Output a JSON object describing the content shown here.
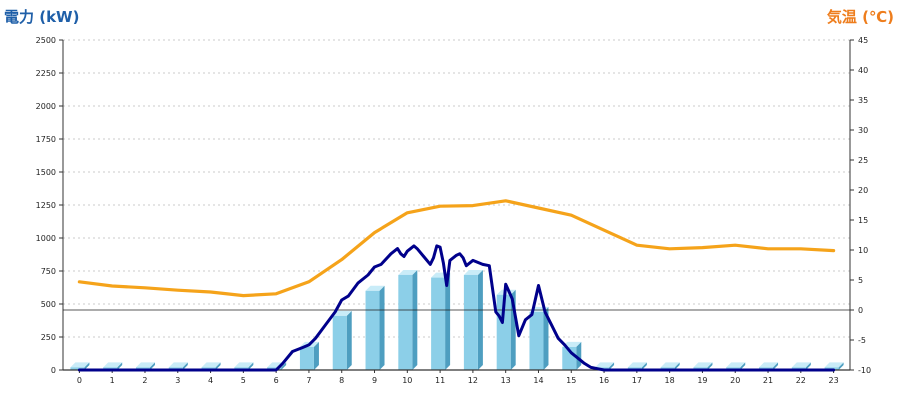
{
  "colors": {
    "left_title": "#1f5fa8",
    "right_title": "#ee7d1c",
    "bar_front": "#8ccfe8",
    "bar_side": "#4e9ec0",
    "bar_top": "#c9ecf8",
    "power_line": "#00008b",
    "temp_line": "#f5a31a",
    "grid": "#bbbbbb"
  },
  "chart_data": {
    "type": "bar",
    "title_left": "電力 (kW)",
    "title_right": "気温 (℃)",
    "left_axis": {
      "min": 0,
      "max": 2500,
      "ticks": [
        0,
        250,
        500,
        750,
        1000,
        1250,
        1500,
        1750,
        2000,
        2250,
        2500
      ]
    },
    "right_axis": {
      "min": -10,
      "max": 45,
      "ticks": [
        -10,
        -5,
        0,
        5,
        10,
        15,
        20,
        25,
        30,
        35,
        40,
        45
      ]
    },
    "categories": [
      "0",
      "1",
      "2",
      "3",
      "4",
      "5",
      "6",
      "7",
      "8",
      "9",
      "10",
      "11",
      "12",
      "13",
      "14",
      "15",
      "16",
      "17",
      "18",
      "19",
      "20",
      "21",
      "22",
      "23"
    ],
    "grid": "horizontal-dashed",
    "bars": {
      "axis": "left",
      "values": [
        20,
        20,
        20,
        20,
        20,
        20,
        20,
        175,
        410,
        600,
        720,
        700,
        720,
        570,
        440,
        175,
        20,
        20,
        20,
        20,
        20,
        20,
        20,
        20
      ]
    },
    "power_line": {
      "axis": "left",
      "x": [
        0,
        1,
        2,
        3,
        4,
        5,
        6,
        6.2,
        6.5,
        6.8,
        7,
        7.2,
        7.5,
        7.8,
        8,
        8.2,
        8.5,
        8.8,
        9,
        9.2,
        9.5,
        9.7,
        9.8,
        9.9,
        10,
        10.2,
        10.3,
        10.5,
        10.7,
        10.8,
        10.9,
        11,
        11.1,
        11.2,
        11.3,
        11.5,
        11.6,
        11.7,
        11.8,
        12,
        12.3,
        12.5,
        12.7,
        12.8,
        12.9,
        13,
        13.2,
        13.4,
        13.6,
        13.8,
        14,
        14.2,
        14.4,
        14.6,
        14.8,
        15,
        15.2,
        15.4,
        15.6,
        15.8,
        16,
        17,
        18,
        19,
        20,
        21,
        22,
        23
      ],
      "y": [
        0,
        0,
        0,
        0,
        0,
        0,
        0,
        50,
        140,
        170,
        190,
        240,
        340,
        440,
        530,
        560,
        660,
        720,
        780,
        800,
        880,
        920,
        880,
        860,
        900,
        940,
        920,
        860,
        800,
        850,
        940,
        930,
        810,
        640,
        830,
        870,
        880,
        850,
        790,
        830,
        800,
        790,
        440,
        410,
        360,
        650,
        540,
        260,
        380,
        420,
        640,
        440,
        340,
        240,
        190,
        130,
        90,
        50,
        20,
        10,
        0,
        0,
        0,
        0,
        0,
        0,
        0,
        0
      ]
    },
    "temp_line": {
      "axis": "right",
      "values": [
        4.7,
        4.0,
        3.7,
        3.3,
        3.0,
        2.4,
        2.7,
        4.7,
        8.4,
        12.9,
        16.2,
        17.3,
        17.4,
        18.2,
        17.0,
        15.8,
        13.3,
        10.8,
        10.2,
        10.4,
        10.8,
        10.2,
        10.2,
        9.9
      ]
    }
  }
}
